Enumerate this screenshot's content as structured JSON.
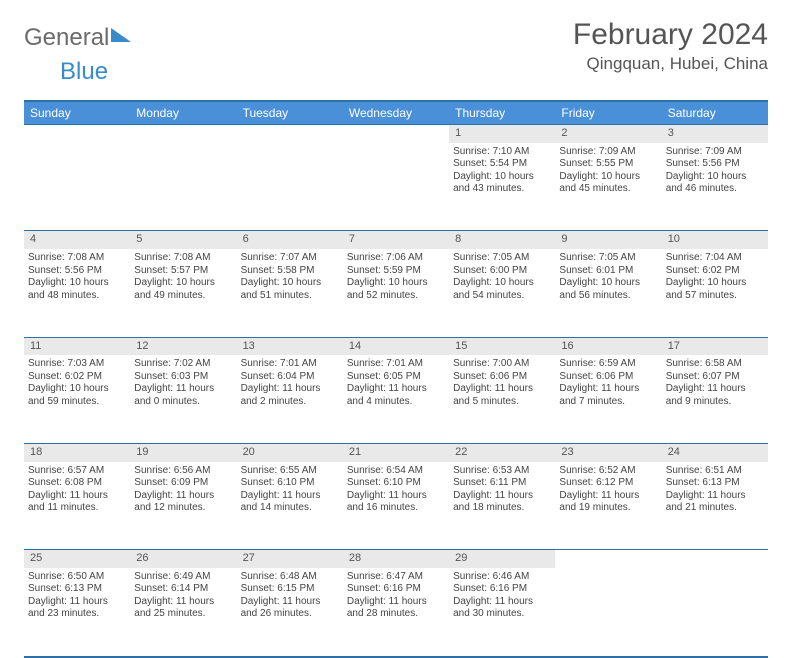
{
  "brand": {
    "part1": "General",
    "part2": "Blue"
  },
  "title": "February 2024",
  "location": "Qingquan, Hubei, China",
  "colors": {
    "header_bg": "#4a90d9",
    "rule": "#2e6fa8",
    "daynum_bg": "#e9e9e9",
    "text": "#444444",
    "brand_blue": "#3a8bc9"
  },
  "weekdays": [
    "Sunday",
    "Monday",
    "Tuesday",
    "Wednesday",
    "Thursday",
    "Friday",
    "Saturday"
  ],
  "weeks": [
    {
      "nums": [
        "",
        "",
        "",
        "",
        "1",
        "2",
        "3"
      ],
      "cells": [
        null,
        null,
        null,
        null,
        {
          "sunrise": "Sunrise: 7:10 AM",
          "sunset": "Sunset: 5:54 PM",
          "day1": "Daylight: 10 hours",
          "day2": "and 43 minutes."
        },
        {
          "sunrise": "Sunrise: 7:09 AM",
          "sunset": "Sunset: 5:55 PM",
          "day1": "Daylight: 10 hours",
          "day2": "and 45 minutes."
        },
        {
          "sunrise": "Sunrise: 7:09 AM",
          "sunset": "Sunset: 5:56 PM",
          "day1": "Daylight: 10 hours",
          "day2": "and 46 minutes."
        }
      ]
    },
    {
      "nums": [
        "4",
        "5",
        "6",
        "7",
        "8",
        "9",
        "10"
      ],
      "cells": [
        {
          "sunrise": "Sunrise: 7:08 AM",
          "sunset": "Sunset: 5:56 PM",
          "day1": "Daylight: 10 hours",
          "day2": "and 48 minutes."
        },
        {
          "sunrise": "Sunrise: 7:08 AM",
          "sunset": "Sunset: 5:57 PM",
          "day1": "Daylight: 10 hours",
          "day2": "and 49 minutes."
        },
        {
          "sunrise": "Sunrise: 7:07 AM",
          "sunset": "Sunset: 5:58 PM",
          "day1": "Daylight: 10 hours",
          "day2": "and 51 minutes."
        },
        {
          "sunrise": "Sunrise: 7:06 AM",
          "sunset": "Sunset: 5:59 PM",
          "day1": "Daylight: 10 hours",
          "day2": "and 52 minutes."
        },
        {
          "sunrise": "Sunrise: 7:05 AM",
          "sunset": "Sunset: 6:00 PM",
          "day1": "Daylight: 10 hours",
          "day2": "and 54 minutes."
        },
        {
          "sunrise": "Sunrise: 7:05 AM",
          "sunset": "Sunset: 6:01 PM",
          "day1": "Daylight: 10 hours",
          "day2": "and 56 minutes."
        },
        {
          "sunrise": "Sunrise: 7:04 AM",
          "sunset": "Sunset: 6:02 PM",
          "day1": "Daylight: 10 hours",
          "day2": "and 57 minutes."
        }
      ]
    },
    {
      "nums": [
        "11",
        "12",
        "13",
        "14",
        "15",
        "16",
        "17"
      ],
      "cells": [
        {
          "sunrise": "Sunrise: 7:03 AM",
          "sunset": "Sunset: 6:02 PM",
          "day1": "Daylight: 10 hours",
          "day2": "and 59 minutes."
        },
        {
          "sunrise": "Sunrise: 7:02 AM",
          "sunset": "Sunset: 6:03 PM",
          "day1": "Daylight: 11 hours",
          "day2": "and 0 minutes."
        },
        {
          "sunrise": "Sunrise: 7:01 AM",
          "sunset": "Sunset: 6:04 PM",
          "day1": "Daylight: 11 hours",
          "day2": "and 2 minutes."
        },
        {
          "sunrise": "Sunrise: 7:01 AM",
          "sunset": "Sunset: 6:05 PM",
          "day1": "Daylight: 11 hours",
          "day2": "and 4 minutes."
        },
        {
          "sunrise": "Sunrise: 7:00 AM",
          "sunset": "Sunset: 6:06 PM",
          "day1": "Daylight: 11 hours",
          "day2": "and 5 minutes."
        },
        {
          "sunrise": "Sunrise: 6:59 AM",
          "sunset": "Sunset: 6:06 PM",
          "day1": "Daylight: 11 hours",
          "day2": "and 7 minutes."
        },
        {
          "sunrise": "Sunrise: 6:58 AM",
          "sunset": "Sunset: 6:07 PM",
          "day1": "Daylight: 11 hours",
          "day2": "and 9 minutes."
        }
      ]
    },
    {
      "nums": [
        "18",
        "19",
        "20",
        "21",
        "22",
        "23",
        "24"
      ],
      "cells": [
        {
          "sunrise": "Sunrise: 6:57 AM",
          "sunset": "Sunset: 6:08 PM",
          "day1": "Daylight: 11 hours",
          "day2": "and 11 minutes."
        },
        {
          "sunrise": "Sunrise: 6:56 AM",
          "sunset": "Sunset: 6:09 PM",
          "day1": "Daylight: 11 hours",
          "day2": "and 12 minutes."
        },
        {
          "sunrise": "Sunrise: 6:55 AM",
          "sunset": "Sunset: 6:10 PM",
          "day1": "Daylight: 11 hours",
          "day2": "and 14 minutes."
        },
        {
          "sunrise": "Sunrise: 6:54 AM",
          "sunset": "Sunset: 6:10 PM",
          "day1": "Daylight: 11 hours",
          "day2": "and 16 minutes."
        },
        {
          "sunrise": "Sunrise: 6:53 AM",
          "sunset": "Sunset: 6:11 PM",
          "day1": "Daylight: 11 hours",
          "day2": "and 18 minutes."
        },
        {
          "sunrise": "Sunrise: 6:52 AM",
          "sunset": "Sunset: 6:12 PM",
          "day1": "Daylight: 11 hours",
          "day2": "and 19 minutes."
        },
        {
          "sunrise": "Sunrise: 6:51 AM",
          "sunset": "Sunset: 6:13 PM",
          "day1": "Daylight: 11 hours",
          "day2": "and 21 minutes."
        }
      ]
    },
    {
      "nums": [
        "25",
        "26",
        "27",
        "28",
        "29",
        "",
        ""
      ],
      "cells": [
        {
          "sunrise": "Sunrise: 6:50 AM",
          "sunset": "Sunset: 6:13 PM",
          "day1": "Daylight: 11 hours",
          "day2": "and 23 minutes."
        },
        {
          "sunrise": "Sunrise: 6:49 AM",
          "sunset": "Sunset: 6:14 PM",
          "day1": "Daylight: 11 hours",
          "day2": "and 25 minutes."
        },
        {
          "sunrise": "Sunrise: 6:48 AM",
          "sunset": "Sunset: 6:15 PM",
          "day1": "Daylight: 11 hours",
          "day2": "and 26 minutes."
        },
        {
          "sunrise": "Sunrise: 6:47 AM",
          "sunset": "Sunset: 6:16 PM",
          "day1": "Daylight: 11 hours",
          "day2": "and 28 minutes."
        },
        {
          "sunrise": "Sunrise: 6:46 AM",
          "sunset": "Sunset: 6:16 PM",
          "day1": "Daylight: 11 hours",
          "day2": "and 30 minutes."
        },
        null,
        null
      ]
    }
  ]
}
